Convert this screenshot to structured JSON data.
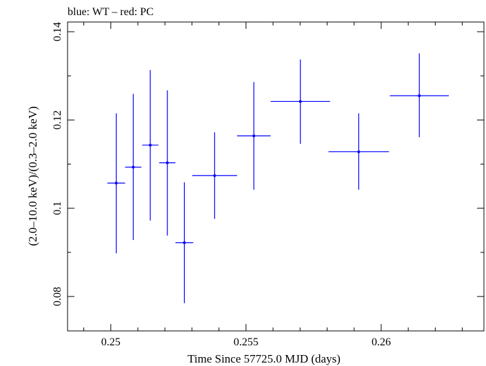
{
  "header_text": "blue: WT – red: PC",
  "chart_data": {
    "type": "scatter",
    "title": "",
    "xlabel": "Time Since 57725.0 MJD (days)",
    "ylabel": "(2.0–10.0 keV)/(0.3–2.0 keV)",
    "xlim": [
      0.2484,
      0.2638
    ],
    "ylim": [
      0.0722,
      0.1422
    ],
    "x_ticks": [
      0.25,
      0.255,
      0.26
    ],
    "x_tick_labels": [
      "0.25",
      "0.255",
      "0.26"
    ],
    "y_ticks": [
      0.08,
      0.1,
      0.12,
      0.14
    ],
    "y_tick_labels": [
      "0.08",
      "0.1",
      "0.12",
      "0.14"
    ],
    "grid": false,
    "colors": {
      "WT": "#0000ff",
      "PC": "#ff0000"
    },
    "series": [
      {
        "name": "WT",
        "color": "#0000ff",
        "points": [
          {
            "x": 0.2502,
            "y": 0.1057,
            "xerr": 0.00033,
            "ylo": 0.0898,
            "yhi": 0.1215
          },
          {
            "x": 0.25083,
            "y": 0.1093,
            "xerr": 0.0003,
            "ylo": 0.0928,
            "yhi": 0.1259
          },
          {
            "x": 0.25146,
            "y": 0.1143,
            "xerr": 0.0003,
            "ylo": 0.0972,
            "yhi": 0.1313
          },
          {
            "x": 0.25209,
            "y": 0.1103,
            "xerr": 0.0003,
            "ylo": 0.0938,
            "yhi": 0.1267
          },
          {
            "x": 0.25272,
            "y": 0.0922,
            "xerr": 0.00033,
            "ylo": 0.0785,
            "yhi": 0.1059
          },
          {
            "x": 0.25384,
            "y": 0.1074,
            "xerr": 0.00083,
            "ylo": 0.0976,
            "yhi": 0.1172
          },
          {
            "x": 0.25529,
            "y": 0.1164,
            "xerr": 0.00062,
            "ylo": 0.1042,
            "yhi": 0.1286
          },
          {
            "x": 0.25701,
            "y": 0.1242,
            "xerr": 0.0011,
            "ylo": 0.1146,
            "yhi": 0.1337
          },
          {
            "x": 0.25917,
            "y": 0.1128,
            "xerr": 0.00112,
            "ylo": 0.1042,
            "yhi": 0.1215
          },
          {
            "x": 0.26141,
            "y": 0.1255,
            "xerr": 0.00109,
            "ylo": 0.1161,
            "yhi": 0.1351
          }
        ]
      }
    ]
  }
}
